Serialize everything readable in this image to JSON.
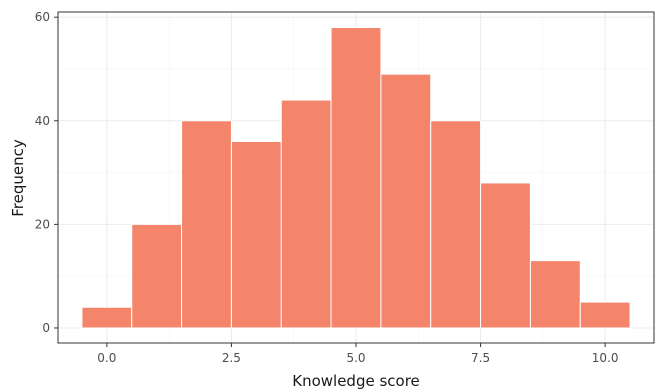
{
  "chart_data": {
    "type": "bar",
    "x_centers": [
      0,
      1,
      2,
      3,
      4,
      5,
      6,
      7,
      8,
      9,
      10
    ],
    "values": [
      4,
      20,
      40,
      36,
      44,
      58,
      49,
      40,
      28,
      13,
      5
    ],
    "bin_width": 1,
    "xlabel": "Knowledge score",
    "ylabel": "Frequency",
    "xlim": [
      -0.98,
      10.98
    ],
    "ylim": [
      -2.9,
      61
    ],
    "x_ticks": [
      0,
      2.5,
      5,
      7.5,
      10
    ],
    "x_tick_labels": [
      "0.0",
      "2.5",
      "5.0",
      "7.5",
      "10.0"
    ],
    "y_ticks": [
      0,
      20,
      40,
      60
    ],
    "y_tick_labels": [
      "0",
      "20",
      "40",
      "60"
    ],
    "grid": true,
    "bar_color": "#F4846A",
    "bar_outline": "#ffffff",
    "legend": "none"
  }
}
